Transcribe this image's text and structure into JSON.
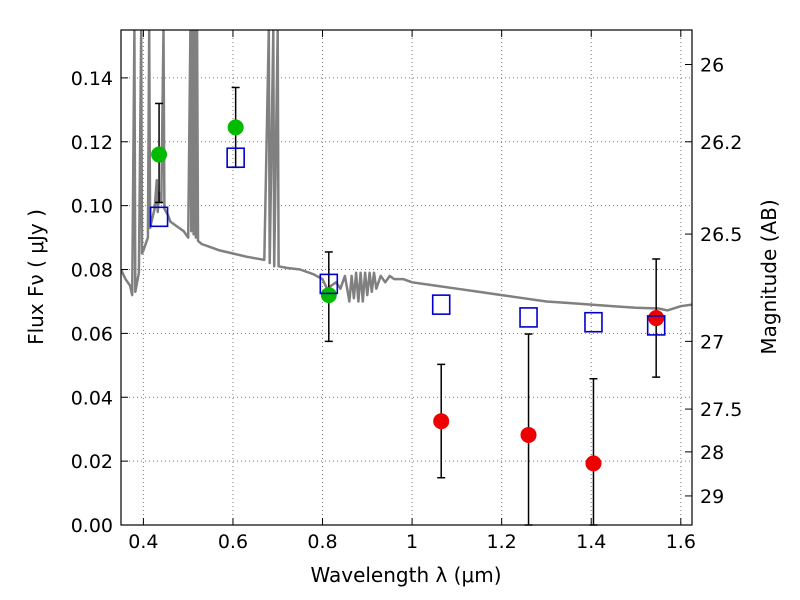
{
  "chart_data": {
    "type": "scatter",
    "xlabel": "Wavelength  λ (μm)",
    "ylabel": "Flux  Fν  ( μJy )",
    "y2label": "Magnitude (AB)",
    "xlim": [
      0.35,
      1.625
    ],
    "ylim": [
      0.0,
      0.155
    ],
    "grid": true,
    "x_ticks": [
      {
        "value": 0.4,
        "label": "0.4"
      },
      {
        "value": 0.6,
        "label": "0.6"
      },
      {
        "value": 0.8,
        "label": "0.8"
      },
      {
        "value": 1.0,
        "label": "1"
      },
      {
        "value": 1.2,
        "label": "1.2"
      },
      {
        "value": 1.4,
        "label": "1.4"
      },
      {
        "value": 1.6,
        "label": "1.6"
      }
    ],
    "y_ticks": [
      {
        "value": 0.0,
        "label": "0.00"
      },
      {
        "value": 0.02,
        "label": "0.02"
      },
      {
        "value": 0.04,
        "label": "0.04"
      },
      {
        "value": 0.06,
        "label": "0.06"
      },
      {
        "value": 0.08,
        "label": "0.08"
      },
      {
        "value": 0.1,
        "label": "0.10"
      },
      {
        "value": 0.12,
        "label": "0.12"
      },
      {
        "value": 0.14,
        "label": "0.14"
      }
    ],
    "y2_ticks": [
      {
        "label": "26",
        "flux": 0.1442
      },
      {
        "label": "26.2",
        "flux": 0.12
      },
      {
        "label": "26.5",
        "flux": 0.0911
      },
      {
        "label": "27",
        "flux": 0.0575
      },
      {
        "label": "27.5",
        "flux": 0.0363
      },
      {
        "label": "28",
        "flux": 0.0229
      },
      {
        "label": "29",
        "flux": 0.0091
      }
    ],
    "series": [
      {
        "marker": "circle-filled",
        "color": "#00bb00",
        "points": [
          {
            "x": 0.435,
            "y": 0.116,
            "yerr_low": 0.101,
            "yerr_high": 0.132
          },
          {
            "x": 0.606,
            "y": 0.1245,
            "yerr_low": 0.112,
            "yerr_high": 0.137
          },
          {
            "x": 0.814,
            "y": 0.072,
            "yerr_low": 0.0575,
            "yerr_high": 0.0855
          }
        ]
      },
      {
        "marker": "circle-filled",
        "color": "#ee0000",
        "points": [
          {
            "x": 1.065,
            "y": 0.0325,
            "yerr_low": 0.0148,
            "yerr_high": 0.0503
          },
          {
            "x": 1.26,
            "y": 0.0282,
            "yerr_low": 0.0,
            "yerr_high": 0.0598
          },
          {
            "x": 1.405,
            "y": 0.0193,
            "yerr_low": 0.0,
            "yerr_high": 0.0458
          },
          {
            "x": 1.545,
            "y": 0.0648,
            "yerr_low": 0.0463,
            "yerr_high": 0.0833
          }
        ]
      },
      {
        "marker": "square-open",
        "color": "#0000cc",
        "points": [
          {
            "x": 0.435,
            "y": 0.0965
          },
          {
            "x": 0.606,
            "y": 0.115
          },
          {
            "x": 0.814,
            "y": 0.0755
          },
          {
            "x": 1.065,
            "y": 0.069
          },
          {
            "x": 1.26,
            "y": 0.065
          },
          {
            "x": 1.405,
            "y": 0.0635
          },
          {
            "x": 1.545,
            "y": 0.0625
          }
        ]
      }
    ],
    "model_spectrum": {
      "color": "#808080",
      "points": [
        [
          0.35,
          0.08
        ],
        [
          0.36,
          0.077
        ],
        [
          0.37,
          0.075
        ],
        [
          0.375,
          0.072
        ],
        [
          0.38,
          0.155
        ],
        [
          0.382,
          0.073
        ],
        [
          0.39,
          0.079
        ],
        [
          0.395,
          0.155
        ],
        [
          0.397,
          0.085
        ],
        [
          0.4,
          0.086
        ],
        [
          0.41,
          0.09
        ],
        [
          0.413,
          0.155
        ],
        [
          0.415,
          0.093
        ],
        [
          0.42,
          0.096
        ],
        [
          0.425,
          0.099
        ],
        [
          0.43,
          0.108
        ],
        [
          0.432,
          0.098
        ],
        [
          0.435,
          0.104
        ],
        [
          0.44,
          0.101
        ],
        [
          0.445,
          0.155
        ],
        [
          0.447,
          0.099
        ],
        [
          0.455,
          0.097
        ],
        [
          0.46,
          0.095
        ],
        [
          0.47,
          0.094
        ],
        [
          0.48,
          0.093
        ],
        [
          0.49,
          0.092
        ],
        [
          0.5,
          0.09
        ],
        [
          0.505,
          0.155
        ],
        [
          0.507,
          0.092
        ],
        [
          0.51,
          0.155
        ],
        [
          0.512,
          0.091
        ],
        [
          0.515,
          0.155
        ],
        [
          0.517,
          0.09
        ],
        [
          0.52,
          0.155
        ],
        [
          0.522,
          0.089
        ],
        [
          0.53,
          0.088
        ],
        [
          0.55,
          0.087
        ],
        [
          0.57,
          0.086
        ],
        [
          0.6,
          0.085
        ],
        [
          0.63,
          0.084
        ],
        [
          0.65,
          0.0835
        ],
        [
          0.67,
          0.083
        ],
        [
          0.68,
          0.155
        ],
        [
          0.682,
          0.082
        ],
        [
          0.69,
          0.155
        ],
        [
          0.692,
          0.081
        ],
        [
          0.7,
          0.155
        ],
        [
          0.702,
          0.081
        ],
        [
          0.72,
          0.0805
        ],
        [
          0.75,
          0.08
        ],
        [
          0.78,
          0.0785
        ],
        [
          0.8,
          0.077
        ],
        [
          0.81,
          0.074
        ],
        [
          0.82,
          0.075
        ],
        [
          0.83,
          0.076
        ],
        [
          0.84,
          0.074
        ],
        [
          0.85,
          0.078
        ],
        [
          0.86,
          0.07
        ],
        [
          0.865,
          0.078
        ],
        [
          0.87,
          0.071
        ],
        [
          0.875,
          0.079
        ],
        [
          0.88,
          0.07
        ],
        [
          0.885,
          0.079
        ],
        [
          0.89,
          0.07
        ],
        [
          0.895,
          0.079
        ],
        [
          0.9,
          0.072
        ],
        [
          0.905,
          0.079
        ],
        [
          0.91,
          0.073
        ],
        [
          0.915,
          0.079
        ],
        [
          0.92,
          0.074
        ],
        [
          0.93,
          0.078
        ],
        [
          0.94,
          0.076
        ],
        [
          0.95,
          0.078
        ],
        [
          0.96,
          0.077
        ],
        [
          0.98,
          0.077
        ],
        [
          1.0,
          0.076
        ],
        [
          1.05,
          0.075
        ],
        [
          1.1,
          0.074
        ],
        [
          1.15,
          0.073
        ],
        [
          1.2,
          0.072
        ],
        [
          1.25,
          0.071
        ],
        [
          1.3,
          0.07
        ],
        [
          1.35,
          0.0695
        ],
        [
          1.4,
          0.069
        ],
        [
          1.45,
          0.0685
        ],
        [
          1.5,
          0.068
        ],
        [
          1.55,
          0.0678
        ],
        [
          1.57,
          0.0672
        ],
        [
          1.6,
          0.0685
        ],
        [
          1.625,
          0.069
        ]
      ]
    }
  }
}
